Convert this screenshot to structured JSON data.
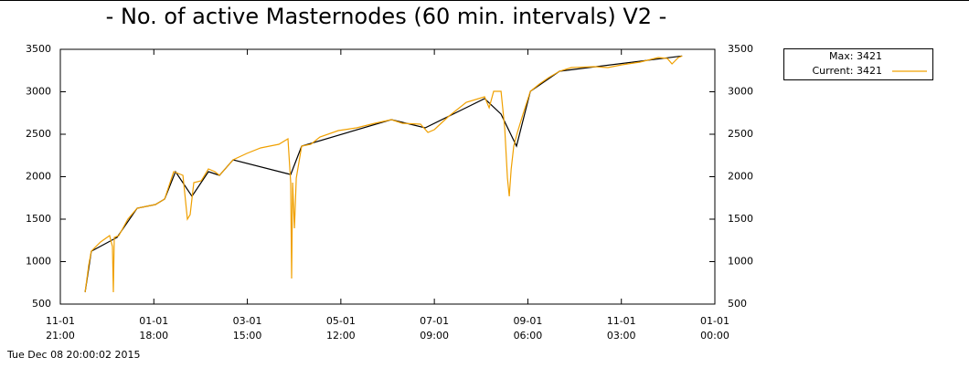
{
  "chart_data": {
    "type": "line",
    "title": "- No. of active Masternodes (60 min. intervals) V2 -",
    "footer": "Tue Dec 08 20:00:02 2015",
    "xlim": [
      0,
      426.125
    ],
    "xticks": [
      {
        "value": 0,
        "label": "11-01\n21:00"
      },
      {
        "value": 60.875,
        "label": "01-01\n18:00"
      },
      {
        "value": 121.75,
        "label": "03-01\n15:00"
      },
      {
        "value": 182.625,
        "label": "05-01\n12:00"
      },
      {
        "value": 243.5,
        "label": "07-01\n09:00"
      },
      {
        "value": 304.375,
        "label": "09-01\n06:00"
      },
      {
        "value": 365.25,
        "label": "11-01\n03:00"
      },
      {
        "value": 426.125,
        "label": "01-01\n00:00"
      }
    ],
    "ylim": [
      500,
      3500
    ],
    "yticks": [
      500,
      1000,
      1500,
      2000,
      2500,
      3000,
      3500
    ],
    "y2lim": [
      500,
      3500
    ],
    "y2ticks": [
      500,
      1000,
      1500,
      2000,
      2500,
      3000,
      3500
    ],
    "legend": "outside-right",
    "series": [
      {
        "name": "Max: 3421",
        "color": "#000000",
        "legend_line": false,
        "x": [
          16.1,
          20.2,
          36.9,
          50.0,
          61.9,
          67.9,
          75.0,
          85.7,
          96.4,
          103.6,
          112.5,
          150.0,
          157.1,
          215.5,
          237.5,
          276.2,
          286.9,
          297.0,
          306.0,
          325.0,
          404.8
        ],
        "values": [
          640,
          1123,
          1285,
          1629,
          1672,
          1737,
          2059,
          1770,
          2059,
          2016,
          2199,
          2026,
          2360,
          2672,
          2575,
          2919,
          2737,
          2360,
          3005,
          3242,
          3421
        ]
      },
      {
        "name": "Current: 3421",
        "color": "#f0a000",
        "legend_line": true,
        "x": [
          16.1,
          18.5,
          20.2,
          26.2,
          32.1,
          33.9,
          34.5,
          35.1,
          38.1,
          44.0,
          50.0,
          56.0,
          61.9,
          67.9,
          73.8,
          79.8,
          82.7,
          84.5,
          86.9,
          91.7,
          96.4,
          100.6,
          103.6,
          112.5,
          121.4,
          130.4,
          136.3,
          142.3,
          148.2,
          150.0,
          150.6,
          151.2,
          152.4,
          153.6,
          157.1,
          163.1,
          169.0,
          181.0,
          192.9,
          204.8,
          215.5,
          222.6,
          234.5,
          239.3,
          243.5,
          252.4,
          264.3,
          276.2,
          279.2,
          282.1,
          286.9,
          289.3,
          291.1,
          292.3,
          293.5,
          295.2,
          297.6,
          301.2,
          306.0,
          311.9,
          317.9,
          325.0,
          332.7,
          347.6,
          356.5,
          365.5,
          377.4,
          389.3,
          395.2,
          398.2,
          402.4,
          404.8
        ],
        "values": [
          640,
          962,
          1123,
          1231,
          1306,
          1177,
          640,
          1285,
          1306,
          1500,
          1629,
          1651,
          1672,
          1737,
          2059,
          2016,
          1500,
          1554,
          1930,
          1952,
          2091,
          2059,
          2016,
          2199,
          2274,
          2339,
          2360,
          2382,
          2446,
          1930,
          801,
          1930,
          1392,
          1984,
          2360,
          2382,
          2468,
          2543,
          2575,
          2629,
          2672,
          2629,
          2618,
          2522,
          2554,
          2704,
          2876,
          2941,
          2812,
          3005,
          3005,
          2575,
          1984,
          1769,
          2091,
          2360,
          2522,
          2737,
          3005,
          3091,
          3167,
          3242,
          3285,
          3296,
          3285,
          3317,
          3349,
          3403,
          3392,
          3328,
          3403,
          3421
        ]
      }
    ]
  }
}
